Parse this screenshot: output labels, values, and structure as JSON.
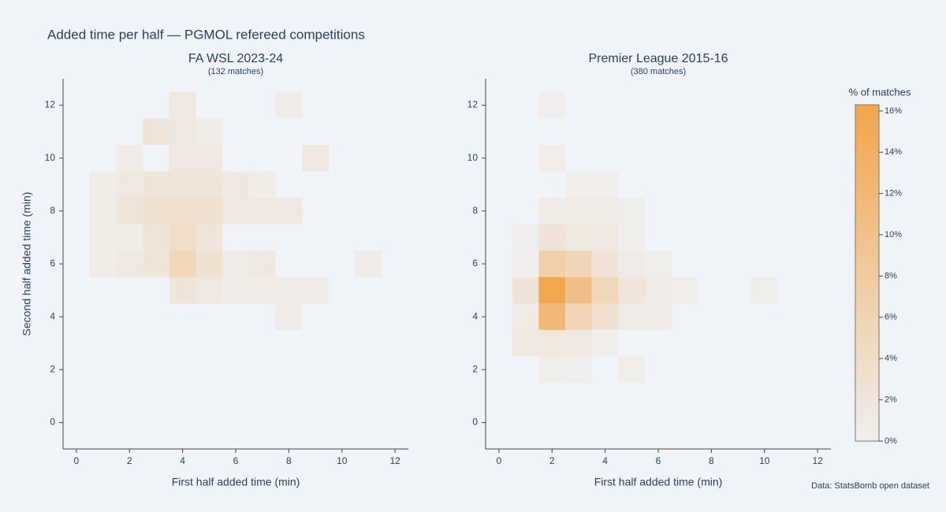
{
  "title": "Added time per half — PGMOL refereed competitions",
  "source": "Data: StatsBomb open dataset",
  "colorbar": {
    "title": "% of matches",
    "lim": [
      0,
      16.3
    ],
    "colors": [
      "#efefef",
      "#f2a54a"
    ],
    "ticks": [
      {
        "value": 0,
        "label": "0%"
      },
      {
        "value": 2,
        "label": "2%"
      },
      {
        "value": 4,
        "label": "4%"
      },
      {
        "value": 6,
        "label": "6%"
      },
      {
        "value": 8,
        "label": "8%"
      },
      {
        "value": 10,
        "label": "10%"
      },
      {
        "value": 12,
        "label": "12%"
      },
      {
        "value": 14,
        "label": "14%"
      },
      {
        "value": 16,
        "label": "16%"
      }
    ]
  },
  "chart_data": [
    {
      "type": "heatmap",
      "title": "FA WSL 2023-24",
      "subtitle": "(132 matches)",
      "xlabel": "First half added time (min)",
      "ylabel": "Second half added time (min)",
      "xlim": [
        -0.5,
        12.5
      ],
      "ylim": [
        -1,
        13
      ],
      "xticks": [
        0,
        2,
        4,
        6,
        8,
        10,
        12
      ],
      "yticks": [
        0,
        2,
        4,
        6,
        8,
        10,
        12
      ],
      "x": [
        4,
        8,
        3,
        4,
        5,
        2,
        4,
        5,
        9,
        1,
        2,
        3,
        4,
        5,
        6,
        7,
        1,
        2,
        3,
        4,
        5,
        6,
        7,
        8,
        1,
        2,
        3,
        4,
        5,
        1,
        2,
        3,
        4,
        5,
        6,
        7,
        11,
        4,
        5,
        6,
        7,
        8,
        9,
        8
      ],
      "y": [
        12,
        12,
        11,
        11,
        11,
        10,
        10,
        10,
        10,
        9,
        9,
        9,
        9,
        9,
        9,
        9,
        8,
        8,
        8,
        8,
        8,
        8,
        8,
        8,
        7,
        7,
        7,
        7,
        7,
        6,
        6,
        6,
        6,
        6,
        6,
        6,
        6,
        5,
        5,
        5,
        5,
        5,
        5,
        4
      ],
      "values": [
        1.5,
        0.8,
        2.3,
        1.5,
        0.8,
        0.8,
        1.5,
        1.5,
        1.5,
        0.8,
        1.5,
        2.3,
        2.3,
        2.3,
        1.5,
        0.8,
        0.8,
        2.3,
        3,
        3,
        3,
        1.5,
        1.5,
        1.5,
        0.8,
        0.8,
        2.3,
        3.8,
        2.3,
        0.8,
        1.5,
        2.3,
        5.3,
        3,
        0.8,
        1.5,
        0.8,
        2.3,
        1.5,
        0.8,
        0.8,
        0.8,
        0.8,
        0.8
      ]
    },
    {
      "type": "heatmap",
      "title": "Premier League 2015-16",
      "subtitle": "(380 matches)",
      "xlabel": "First half added time (min)",
      "xlim": [
        -0.5,
        12.5
      ],
      "ylim": [
        -1,
        13
      ],
      "xticks": [
        0,
        2,
        4,
        6,
        8,
        10,
        12
      ],
      "yticks": [
        0,
        2,
        4,
        6,
        8,
        10,
        12
      ],
      "x": [
        2,
        2,
        3,
        4,
        2,
        3,
        4,
        5,
        1,
        2,
        3,
        4,
        5,
        1,
        2,
        3,
        4,
        5,
        6,
        1,
        2,
        3,
        4,
        5,
        6,
        7,
        10,
        1,
        2,
        3,
        4,
        5,
        6,
        1,
        2,
        3,
        4,
        2,
        3,
        5
      ],
      "y": [
        12,
        10,
        9,
        9,
        8,
        8,
        8,
        8,
        7,
        7,
        7,
        7,
        7,
        6,
        6,
        6,
        6,
        6,
        6,
        5,
        5,
        5,
        5,
        5,
        5,
        5,
        5,
        4,
        4,
        4,
        4,
        4,
        4,
        3,
        3,
        3,
        3,
        2,
        2,
        2
      ],
      "values": [
        0.3,
        0.5,
        0.3,
        0.3,
        0.8,
        0.8,
        0.8,
        0.5,
        0.3,
        2.4,
        1.6,
        1.3,
        0.5,
        0.3,
        6.8,
        5.5,
        2.4,
        1.0,
        0.5,
        2.4,
        16,
        10.5,
        5.3,
        2.1,
        0.8,
        0.5,
        0.5,
        1.0,
        12.1,
        5.5,
        3.2,
        0.8,
        0.8,
        1.3,
        1.6,
        1.3,
        0.3,
        0.5,
        0.3,
        0.5
      ]
    }
  ]
}
